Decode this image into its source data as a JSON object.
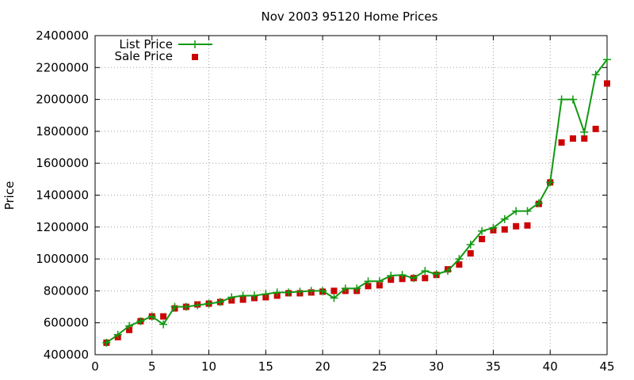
{
  "chart_data": {
    "type": "line",
    "title": "Nov 2003 95120 Home Prices",
    "xlabel": "",
    "ylabel": "Price",
    "xlim": [
      0,
      45
    ],
    "ylim": [
      400000,
      2400000
    ],
    "xticks": [
      "0",
      "5",
      "10",
      "15",
      "20",
      "25",
      "30",
      "35",
      "40",
      "45"
    ],
    "yticks": [
      "400000",
      "600000",
      "800000",
      "1000000",
      "1200000",
      "1400000",
      "1600000",
      "1800000",
      "2000000",
      "2200000",
      "2400000"
    ],
    "grid": true,
    "legend_position": "top-left",
    "series": [
      {
        "name": "List Price",
        "style": "line-with-plus-markers",
        "color": "#119911",
        "x": [
          1,
          2,
          3,
          4,
          5,
          6,
          7,
          8,
          9,
          10,
          11,
          12,
          13,
          14,
          15,
          16,
          17,
          18,
          19,
          20,
          21,
          22,
          23,
          24,
          25,
          26,
          27,
          28,
          29,
          30,
          31,
          32,
          33,
          34,
          35,
          36,
          37,
          38,
          39,
          40,
          41,
          42,
          43,
          44,
          45
        ],
        "values": [
          475000,
          525000,
          580000,
          610000,
          640000,
          590000,
          700000,
          700000,
          710000,
          720000,
          730000,
          760000,
          770000,
          770000,
          780000,
          790000,
          790000,
          795000,
          800000,
          800000,
          755000,
          815000,
          815000,
          860000,
          860000,
          895000,
          900000,
          880000,
          925000,
          905000,
          925000,
          1000000,
          1090000,
          1175000,
          1195000,
          1250000,
          1300000,
          1300000,
          1350000,
          1480000,
          2000000,
          2000000,
          1795000,
          2155000,
          2250000
        ]
      },
      {
        "name": "Sale Price",
        "style": "square-markers",
        "color": "#cc0000",
        "x": [
          1,
          2,
          3,
          4,
          5,
          6,
          7,
          8,
          9,
          10,
          11,
          12,
          13,
          14,
          15,
          16,
          17,
          18,
          19,
          20,
          21,
          22,
          23,
          24,
          25,
          26,
          27,
          28,
          29,
          30,
          31,
          32,
          33,
          34,
          35,
          36,
          37,
          38,
          39,
          40,
          41,
          42,
          43,
          44,
          45
        ],
        "values": [
          475000,
          510000,
          555000,
          610000,
          640000,
          640000,
          690000,
          700000,
          715000,
          720000,
          730000,
          740000,
          745000,
          755000,
          760000,
          770000,
          785000,
          785000,
          790000,
          795000,
          800000,
          800000,
          800000,
          830000,
          835000,
          870000,
          875000,
          880000,
          880000,
          900000,
          935000,
          965000,
          1035000,
          1125000,
          1180000,
          1185000,
          1205000,
          1210000,
          1345000,
          1480000,
          1730000,
          1755000,
          1755000,
          1815000,
          2100000
        ]
      }
    ]
  }
}
